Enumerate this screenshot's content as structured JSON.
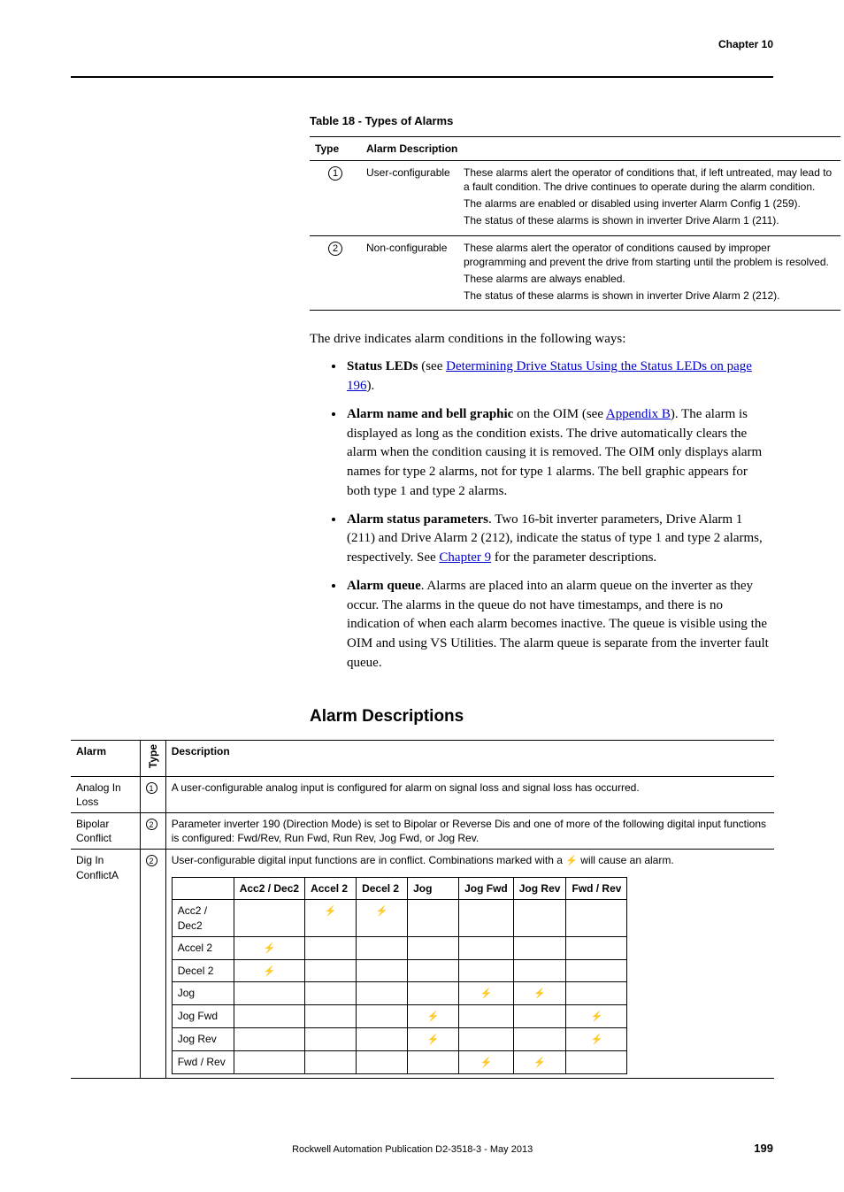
{
  "header": {
    "chapter": "Chapter 10"
  },
  "table18": {
    "caption": "Table 18 - Types of Alarms",
    "cols": [
      "Type",
      "Alarm Description"
    ],
    "rows": [
      {
        "type_num": "1",
        "name": "User-configurable",
        "desc": [
          "These alarms alert the operator of conditions that, if left untreated, may lead to a fault condition. The drive continues to operate during the alarm condition.",
          "The alarms are enabled or disabled using inverter Alarm Config 1 (259).",
          "The status of these alarms is shown in inverter Drive Alarm 1 (211)."
        ]
      },
      {
        "type_num": "2",
        "name": "Non-configurable",
        "desc": [
          "These alarms alert the operator of conditions caused by improper programming and prevent the drive from starting until the problem is resolved.",
          "These alarms are always enabled.",
          "The status of these alarms is shown in inverter Drive Alarm 2 (212)."
        ]
      }
    ]
  },
  "intro": "The drive indicates alarm conditions in the following ways:",
  "bullets": {
    "b1_lead": "Status LEDs",
    "b1_rest": " (see ",
    "b1_link": "Determining Drive Status Using the Status LEDs on page 196",
    "b1_tail": ").",
    "b2_lead": "Alarm name and bell graphic",
    "b2_rest": " on the OIM (see ",
    "b2_link": "Appendix B",
    "b2_tail": "). The alarm is displayed as long as the condition exists. The drive automatically clears the alarm when the condition causing it is removed. The OIM only displays alarm names for type 2 alarms, not for type 1 alarms. The bell graphic appears for both type 1 and type 2 alarms.",
    "b3_lead": "Alarm status parameters",
    "b3_rest": ". Two 16-bit inverter parameters, Drive Alarm 1 (211) and Drive Alarm 2 (212), indicate the status of type 1 and type 2 alarms, respectively. See ",
    "b3_link": "Chapter 9",
    "b3_tail": " for the parameter descriptions.",
    "b4_lead": "Alarm queue",
    "b4_rest": ". Alarms are placed into an alarm queue on the inverter as they occur. The alarms in the queue do not have timestamps, and there is no indication of when each alarm becomes inactive. The queue is visible using the OIM and using VS Utilities. The alarm queue is separate from the inverter fault queue."
  },
  "section_title": "Alarm Descriptions",
  "desc_table": {
    "head": {
      "alarm": "Alarm",
      "type": "Type",
      "desc": "Description"
    },
    "rows": {
      "r1": {
        "alarm": "Analog In Loss",
        "type": "1",
        "desc": "A user-configurable analog input is configured for alarm on signal loss and signal loss has occurred."
      },
      "r2": {
        "alarm": "Bipolar Conflict",
        "type": "2",
        "desc": "Parameter inverter 190 (Direction Mode) is set to Bipolar or Reverse Dis and one of more of the following digital input functions is configured: Fwd/Rev, Run Fwd, Run Rev, Jog Fwd, or Jog Rev."
      },
      "r3": {
        "alarm": "Dig In ConflictA",
        "type": "2",
        "desc_pre": "User-configurable digital input functions are in conflict. Combinations marked with a ",
        "desc_post": " will cause an alarm.",
        "matrix": {
          "cols": [
            "Acc2 / Dec2",
            "Accel 2",
            "Decel 2",
            "Jog",
            "Jog Fwd",
            "Jog Rev",
            "Fwd / Rev"
          ],
          "rows": [
            "Acc2 / Dec2",
            "Accel 2",
            "Decel 2",
            "Jog",
            "Jog Fwd",
            "Jog Rev",
            "Fwd / Rev"
          ],
          "marks": [
            [
              0,
              1,
              1,
              0,
              0,
              0,
              0
            ],
            [
              1,
              0,
              0,
              0,
              0,
              0,
              0
            ],
            [
              1,
              0,
              0,
              0,
              0,
              0,
              0
            ],
            [
              0,
              0,
              0,
              0,
              1,
              1,
              0
            ],
            [
              0,
              0,
              0,
              1,
              0,
              0,
              1
            ],
            [
              0,
              0,
              0,
              1,
              0,
              0,
              1
            ],
            [
              0,
              0,
              0,
              0,
              1,
              1,
              0
            ]
          ]
        }
      }
    }
  },
  "footer": {
    "pub": "Rockwell Automation Publication D2-3518-3 - May 2013",
    "page": "199"
  },
  "colors": {
    "link": "#0000cc"
  }
}
